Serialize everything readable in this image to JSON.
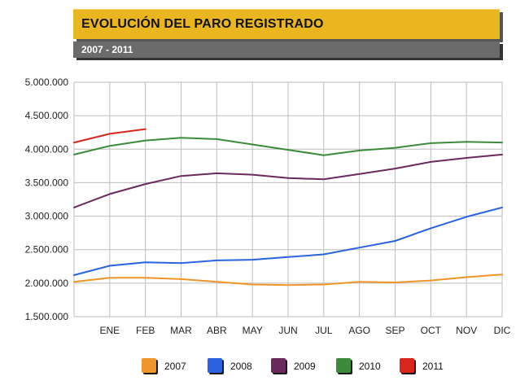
{
  "header": {
    "title": "EVOLUCIÓN DEL PARO REGISTRADO",
    "subtitle": "2007 - 2011"
  },
  "colors": {
    "title_bar": "#e9b620",
    "subtitle_bar": "#6b6b6b",
    "grid": "#bdbdbd"
  },
  "chart_data": {
    "type": "line",
    "title": "EVOLUCIÓN DEL PARO REGISTRADO",
    "subtitle": "2007 - 2011",
    "xlabel": "",
    "ylabel": "",
    "categories": [
      "ENE",
      "FEB",
      "MAR",
      "ABR",
      "MAY",
      "JUN",
      "JUL",
      "AGO",
      "SEP",
      "OCT",
      "NOV",
      "DIC"
    ],
    "ylim": [
      1500000,
      5000000
    ],
    "y_ticks": [
      1500000,
      2000000,
      2500000,
      3000000,
      3500000,
      4000000,
      4500000,
      5000000
    ],
    "y_tick_labels": [
      "1.500.000",
      "2.000.000",
      "2.500.000",
      "3.000.000",
      "3.500.000",
      "4.000.000",
      "4.500.000",
      "5.000.000"
    ],
    "grid": true,
    "legend_position": "bottom",
    "series": [
      {
        "name": "2007",
        "color": "#f0952a",
        "start": 2020000,
        "values": [
          2080000,
          2080000,
          2060000,
          2020000,
          1980000,
          1970000,
          1980000,
          2020000,
          2010000,
          2040000,
          2090000,
          2130000
        ]
      },
      {
        "name": "2008",
        "color": "#2a62e0",
        "start": 2120000,
        "values": [
          2260000,
          2310000,
          2300000,
          2340000,
          2350000,
          2390000,
          2430000,
          2530000,
          2630000,
          2820000,
          2990000,
          3130000
        ]
      },
      {
        "name": "2009",
        "color": "#6a2a5e",
        "start": 3130000,
        "values": [
          3330000,
          3480000,
          3600000,
          3640000,
          3620000,
          3570000,
          3550000,
          3630000,
          3710000,
          3810000,
          3870000,
          3920000
        ]
      },
      {
        "name": "2010",
        "color": "#3c8a3c",
        "start": 3920000,
        "values": [
          4050000,
          4130000,
          4170000,
          4150000,
          4070000,
          3990000,
          3910000,
          3980000,
          4020000,
          4090000,
          4110000,
          4100000
        ]
      },
      {
        "name": "2011",
        "color": "#d9261c",
        "start": 4100000,
        "values": [
          4230000,
          4300000,
          null,
          null,
          null,
          null,
          null,
          null,
          null,
          null,
          null,
          null
        ]
      }
    ]
  }
}
